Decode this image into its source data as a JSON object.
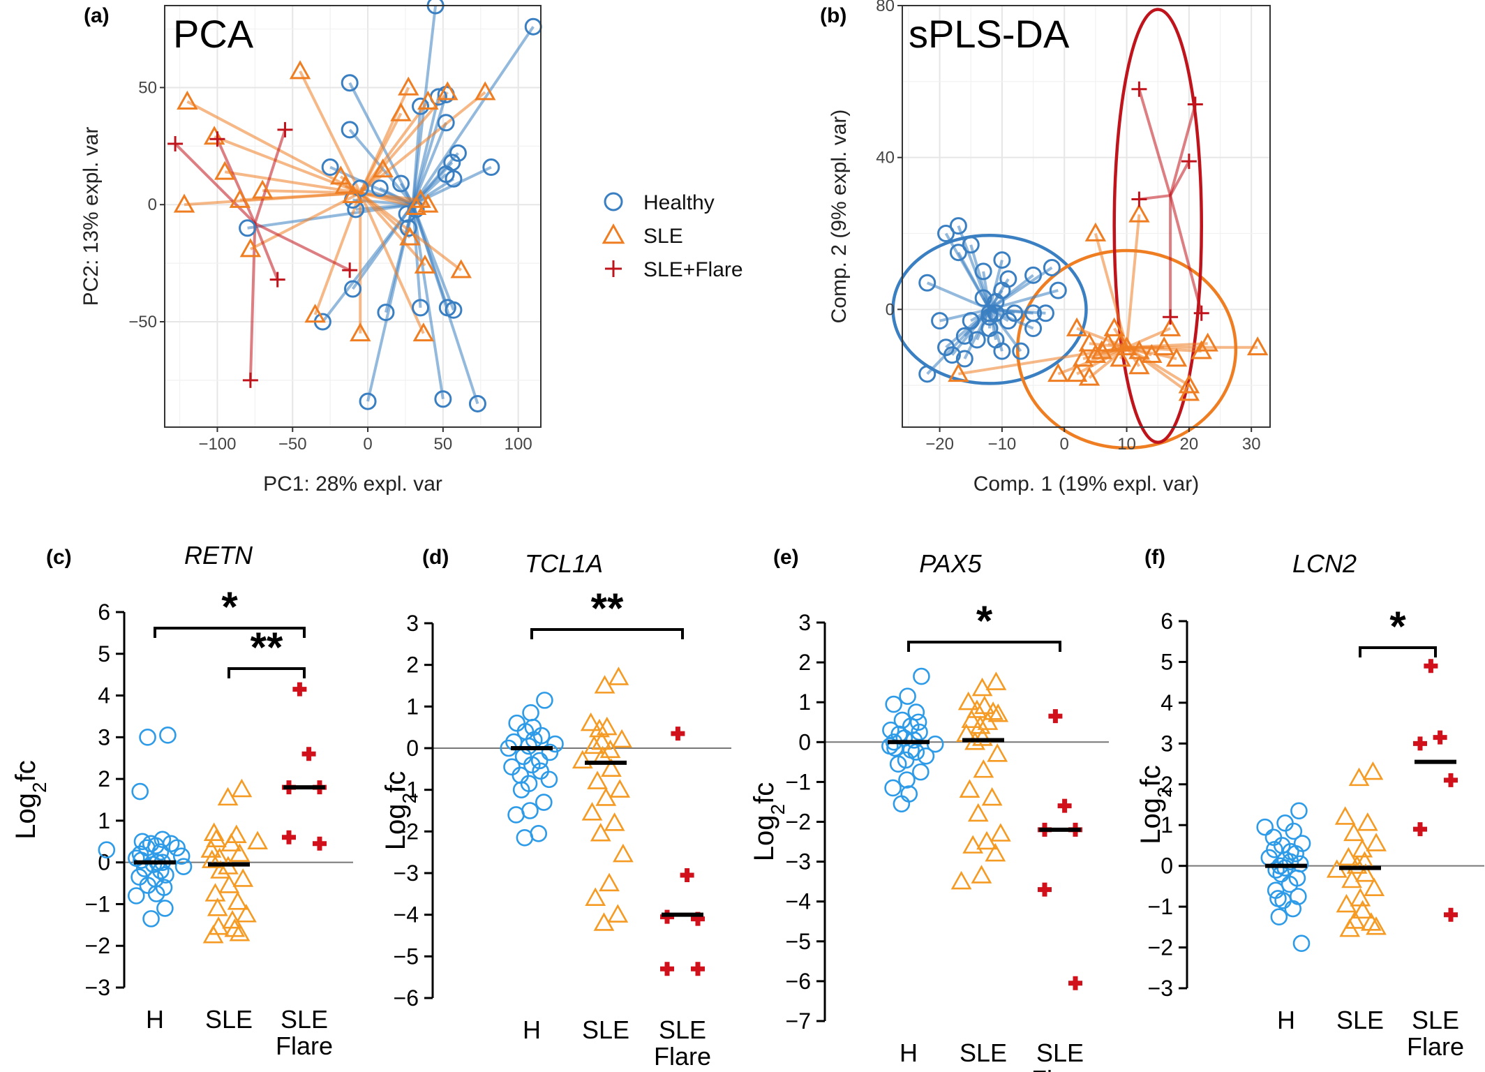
{
  "colors": {
    "healthy": "#3a7fc1",
    "sle": "#ef7d22",
    "flare": "#c0141c",
    "healthy_bright": "#2d9be8",
    "sle_bright": "#f59a23",
    "flare_bright": "#d0101a"
  },
  "legend": [
    {
      "key": "healthy",
      "label": "Healthy",
      "icon": "circle-marker-icon"
    },
    {
      "key": "sle",
      "label": "SLE",
      "icon": "triangle-marker-icon"
    },
    {
      "key": "flare",
      "label": "SLE+Flare",
      "icon": "plus-marker-icon"
    }
  ],
  "chart_data": [
    {
      "id": "a",
      "panel_label": "(a)",
      "type": "scatter",
      "title": "PCA",
      "xlabel": "PC1: 28% expl. var",
      "ylabel": "PC2: 13% expl. var",
      "xlim": [
        -135,
        115
      ],
      "ylim": [
        -95,
        85
      ],
      "xticks": [
        -100,
        -50,
        0,
        50,
        100
      ],
      "yticks": [
        -50,
        0,
        50
      ],
      "grid": true,
      "centroid_lines": true,
      "series": [
        {
          "group": "healthy",
          "centroid": [
            30,
            0
          ],
          "points": [
            [
              45,
              85
            ],
            [
              110,
              76
            ],
            [
              -12,
              52
            ],
            [
              -12,
              32
            ],
            [
              47,
              46
            ],
            [
              35,
              42
            ],
            [
              52,
              47
            ],
            [
              52,
              35
            ],
            [
              60,
              22
            ],
            [
              56,
              18
            ],
            [
              57,
              11
            ],
            [
              52,
              13
            ],
            [
              82,
              16
            ],
            [
              -25,
              16
            ],
            [
              -5,
              7
            ],
            [
              -10,
              2
            ],
            [
              8,
              7
            ],
            [
              22,
              9
            ],
            [
              -8,
              -2
            ],
            [
              26,
              -4
            ],
            [
              27,
              -10
            ],
            [
              -80,
              -10
            ],
            [
              -10,
              -36
            ],
            [
              12,
              -46
            ],
            [
              35,
              -44
            ],
            [
              53,
              -44
            ],
            [
              57,
              -45
            ],
            [
              -30,
              -50
            ],
            [
              0,
              -84
            ],
            [
              50,
              -83
            ],
            [
              73,
              -85
            ],
            [
              32,
              -2
            ]
          ]
        },
        {
          "group": "sle",
          "centroid": [
            -5,
            5
          ],
          "points": [
            [
              -120,
              44
            ],
            [
              -102,
              29
            ],
            [
              -95,
              14
            ],
            [
              -122,
              0
            ],
            [
              -85,
              2
            ],
            [
              -70,
              6
            ],
            [
              -78,
              -19
            ],
            [
              -45,
              57
            ],
            [
              -18,
              12
            ],
            [
              -15,
              8
            ],
            [
              -10,
              4
            ],
            [
              10,
              15
            ],
            [
              22,
              39
            ],
            [
              27,
              50
            ],
            [
              40,
              44
            ],
            [
              53,
              48
            ],
            [
              78,
              48
            ],
            [
              35,
              2
            ],
            [
              32,
              -1
            ],
            [
              28,
              -14
            ],
            [
              38,
              -26
            ],
            [
              -35,
              -47
            ],
            [
              62,
              -28
            ],
            [
              -5,
              -55
            ],
            [
              37,
              -55
            ],
            [
              40,
              0
            ]
          ]
        },
        {
          "group": "flare",
          "centroid": [
            -75,
            -8
          ],
          "points": [
            [
              -128,
              26
            ],
            [
              -100,
              28
            ],
            [
              -55,
              32
            ],
            [
              -60,
              -32
            ],
            [
              -12,
              -28
            ],
            [
              -78,
              -75
            ]
          ]
        }
      ]
    },
    {
      "id": "b",
      "panel_label": "(b)",
      "type": "scatter",
      "title": "sPLS-DA",
      "xlabel": "Comp. 1 (19% expl. var)",
      "ylabel": "Comp. 2 (9% expl. var)",
      "xlim": [
        -26,
        33
      ],
      "ylim": [
        -31,
        80
      ],
      "xticks": [
        -20,
        -10,
        0,
        10,
        20,
        30
      ],
      "yticks": [
        0,
        40,
        80
      ],
      "grid": true,
      "centroid_lines": true,
      "ellipses": [
        {
          "group": "healthy",
          "center": [
            -12,
            0
          ],
          "radii": [
            15.5,
            19.5
          ]
        },
        {
          "group": "sle",
          "center": [
            10,
            -10.5
          ],
          "radii": [
            17.5,
            26
          ]
        },
        {
          "group": "flare",
          "center": [
            15,
            22
          ],
          "radii": [
            7,
            57
          ]
        }
      ],
      "series": [
        {
          "group": "healthy",
          "centroid": [
            -12,
            0
          ],
          "points": [
            [
              -22,
              7
            ],
            [
              -22,
              -17
            ],
            [
              -20,
              -3
            ],
            [
              -19,
              -10
            ],
            [
              -19,
              20
            ],
            [
              -18,
              -12
            ],
            [
              -17,
              22
            ],
            [
              -17,
              15
            ],
            [
              -16,
              -13
            ],
            [
              -16,
              -7
            ],
            [
              -15,
              -3
            ],
            [
              -15,
              17
            ],
            [
              -14,
              -8
            ],
            [
              -13,
              10
            ],
            [
              -13,
              3
            ],
            [
              -12,
              -2
            ],
            [
              -12,
              -1
            ],
            [
              -12,
              -5
            ],
            [
              -11,
              2
            ],
            [
              -11,
              -8
            ],
            [
              -11,
              -1
            ],
            [
              -10,
              -11
            ],
            [
              -10,
              5
            ],
            [
              -10,
              13
            ],
            [
              -9,
              8
            ],
            [
              -9,
              -3
            ],
            [
              -8,
              -1
            ],
            [
              -7,
              -11
            ],
            [
              -5,
              -1
            ],
            [
              -5,
              9
            ],
            [
              -5,
              -5
            ],
            [
              -2,
              11
            ],
            [
              -1,
              5
            ],
            [
              -3,
              -1
            ]
          ]
        },
        {
          "group": "sle",
          "centroid": [
            10,
            -10
          ],
          "points": [
            [
              -17,
              -17
            ],
            [
              5,
              20
            ],
            [
              12,
              25
            ],
            [
              2,
              -5
            ],
            [
              3,
              -13
            ],
            [
              5,
              -12
            ],
            [
              4,
              -9
            ],
            [
              6,
              -11
            ],
            [
              7,
              -9
            ],
            [
              8,
              -5
            ],
            [
              9,
              -9
            ],
            [
              10,
              -10
            ],
            [
              9,
              -13
            ],
            [
              12,
              -11
            ],
            [
              14,
              -12
            ],
            [
              16,
              -10
            ],
            [
              17,
              -5
            ],
            [
              18,
              -13
            ],
            [
              20,
              -20
            ],
            [
              20,
              -22
            ],
            [
              22,
              -11
            ],
            [
              23,
              -9
            ],
            [
              31,
              -10
            ],
            [
              -1,
              -17
            ],
            [
              2,
              -17
            ],
            [
              4,
              -18
            ],
            [
              12,
              -15
            ]
          ]
        },
        {
          "group": "flare",
          "centroid": [
            17,
            30
          ],
          "points": [
            [
              12,
              58
            ],
            [
              21,
              54
            ],
            [
              20,
              39
            ],
            [
              12,
              29
            ],
            [
              17,
              -2
            ],
            [
              22,
              -1
            ]
          ]
        }
      ]
    },
    {
      "id": "c",
      "panel_label": "(c)",
      "type": "scatter",
      "title": "RETN",
      "ylabel": "Log2fc",
      "categories": [
        "H",
        "SLE",
        "SLE Flare"
      ],
      "ylim": [
        -3,
        6
      ],
      "yticks": [
        -3,
        -2,
        -1,
        0,
        1,
        2,
        3,
        4,
        5,
        6
      ],
      "medians": [
        0,
        -0.05,
        1.8
      ],
      "series": [
        {
          "group": "healthy",
          "values": [
            3.05,
            3.0,
            1.7,
            0.55,
            0.5,
            0.45,
            0.45,
            0.4,
            0.35,
            0.35,
            0.3,
            0.25,
            0.2,
            0.15,
            0.1,
            0.05,
            0.0,
            0.0,
            -0.05,
            -0.1,
            -0.15,
            -0.2,
            -0.3,
            -0.35,
            -0.4,
            -0.55,
            -0.6,
            -0.75,
            -0.8,
            -1.1,
            -1.35
          ]
        },
        {
          "group": "sle",
          "values": [
            1.75,
            1.55,
            0.7,
            0.65,
            0.55,
            0.5,
            0.45,
            0.3,
            0.2,
            0.1,
            0.05,
            -0.1,
            -0.2,
            -0.4,
            -0.55,
            -0.75,
            -0.95,
            -1.1,
            -1.25,
            -1.4,
            -1.55,
            -1.6,
            -1.7,
            -1.75
          ]
        },
        {
          "group": "flare",
          "values": [
            4.15,
            2.6,
            1.8,
            1.8,
            0.6,
            0.45
          ]
        }
      ],
      "significance": [
        {
          "from": 0,
          "to": 2,
          "label": "*"
        },
        {
          "from": 1,
          "to": 2,
          "label": "**"
        }
      ]
    },
    {
      "id": "d",
      "panel_label": "(d)",
      "type": "scatter",
      "title": "TCL1A",
      "ylabel": "Log2fc",
      "categories": [
        "H",
        "SLE",
        "SLE Flare"
      ],
      "ylim": [
        -6,
        3
      ],
      "yticks": [
        -6,
        -5,
        -4,
        -3,
        -2,
        -1,
        0,
        1,
        2,
        3
      ],
      "medians": [
        0,
        -0.35,
        -4.0
      ],
      "series": [
        {
          "group": "healthy",
          "values": [
            1.15,
            0.85,
            0.6,
            0.5,
            0.4,
            0.3,
            0.2,
            0.15,
            0.1,
            0.05,
            0.0,
            -0.1,
            -0.2,
            -0.3,
            -0.4,
            -0.45,
            -0.55,
            -0.65,
            -0.75,
            -0.85,
            -1.0,
            -1.3,
            -1.5,
            -1.6,
            -2.05,
            -2.15
          ]
        },
        {
          "group": "sle",
          "values": [
            1.7,
            1.5,
            0.6,
            0.5,
            0.45,
            0.2,
            0.15,
            0.05,
            -0.05,
            -0.2,
            -0.3,
            -0.5,
            -0.8,
            -1.0,
            -1.2,
            -1.55,
            -1.8,
            -2.05,
            -2.55,
            -3.25,
            -3.6,
            -4.0,
            -4.2
          ]
        },
        {
          "group": "flare",
          "values": [
            0.35,
            -3.05,
            -4.05,
            -4.1,
            -5.3,
            -5.3
          ]
        }
      ],
      "significance": [
        {
          "from": 0,
          "to": 2,
          "label": "**"
        }
      ]
    },
    {
      "id": "e",
      "panel_label": "(e)",
      "type": "scatter",
      "title": "PAX5",
      "ylabel": "Log2fc",
      "categories": [
        "H",
        "SLE",
        "SLE Flare"
      ],
      "ylim": [
        -7,
        3
      ],
      "yticks": [
        -7,
        -6,
        -5,
        -4,
        -3,
        -2,
        -1,
        0,
        1,
        2,
        3
      ],
      "medians": [
        0,
        0.05,
        -2.2
      ],
      "series": [
        {
          "group": "healthy",
          "values": [
            1.65,
            1.15,
            0.95,
            0.75,
            0.55,
            0.5,
            0.4,
            0.3,
            0.25,
            0.2,
            0.1,
            0.05,
            0.0,
            -0.05,
            -0.1,
            -0.15,
            -0.2,
            -0.25,
            -0.35,
            -0.45,
            -0.55,
            -0.75,
            -0.95,
            -1.15,
            -1.3,
            -1.55
          ]
        },
        {
          "group": "sle",
          "values": [
            1.5,
            1.35,
            1.0,
            0.9,
            0.8,
            0.75,
            0.7,
            0.55,
            0.5,
            0.4,
            0.2,
            0.1,
            0.0,
            -0.3,
            -0.7,
            -1.2,
            -1.4,
            -1.8,
            -2.3,
            -2.5,
            -2.6,
            -2.8,
            -3.35,
            -3.5
          ]
        },
        {
          "group": "flare",
          "values": [
            0.65,
            -1.6,
            -2.2,
            -2.2,
            -3.7,
            -6.05
          ]
        }
      ],
      "significance": [
        {
          "from": 0,
          "to": 2,
          "label": "*"
        }
      ]
    },
    {
      "id": "f",
      "panel_label": "(f)",
      "type": "scatter",
      "title": "LCN2",
      "ylabel": "Log2fc",
      "categories": [
        "H",
        "SLE",
        "SLE Flare"
      ],
      "ylim": [
        -3,
        6
      ],
      "yticks": [
        -3,
        -2,
        -1,
        0,
        1,
        2,
        3,
        4,
        5,
        6
      ],
      "medians": [
        0,
        -0.05,
        2.55
      ],
      "series": [
        {
          "group": "healthy",
          "values": [
            1.35,
            1.05,
            0.95,
            0.85,
            0.7,
            0.55,
            0.5,
            0.4,
            0.35,
            0.3,
            0.2,
            0.15,
            0.1,
            0.05,
            0.0,
            -0.05,
            -0.1,
            -0.2,
            -0.3,
            -0.45,
            -0.6,
            -0.75,
            -0.8,
            -0.85,
            -1.05,
            -1.25,
            -1.9
          ]
        },
        {
          "group": "sle",
          "values": [
            2.3,
            2.15,
            1.2,
            1.05,
            0.8,
            0.55,
            0.4,
            0.2,
            0.1,
            0.0,
            -0.1,
            -0.2,
            -0.35,
            -0.55,
            -0.8,
            -0.95,
            -1.1,
            -1.35,
            -1.4,
            -1.5,
            -1.55
          ]
        },
        {
          "group": "flare",
          "values": [
            4.9,
            3.15,
            3.0,
            2.1,
            0.9,
            -1.2
          ]
        }
      ],
      "significance": [
        {
          "from": 1,
          "to": 2,
          "label": "*"
        }
      ]
    }
  ]
}
